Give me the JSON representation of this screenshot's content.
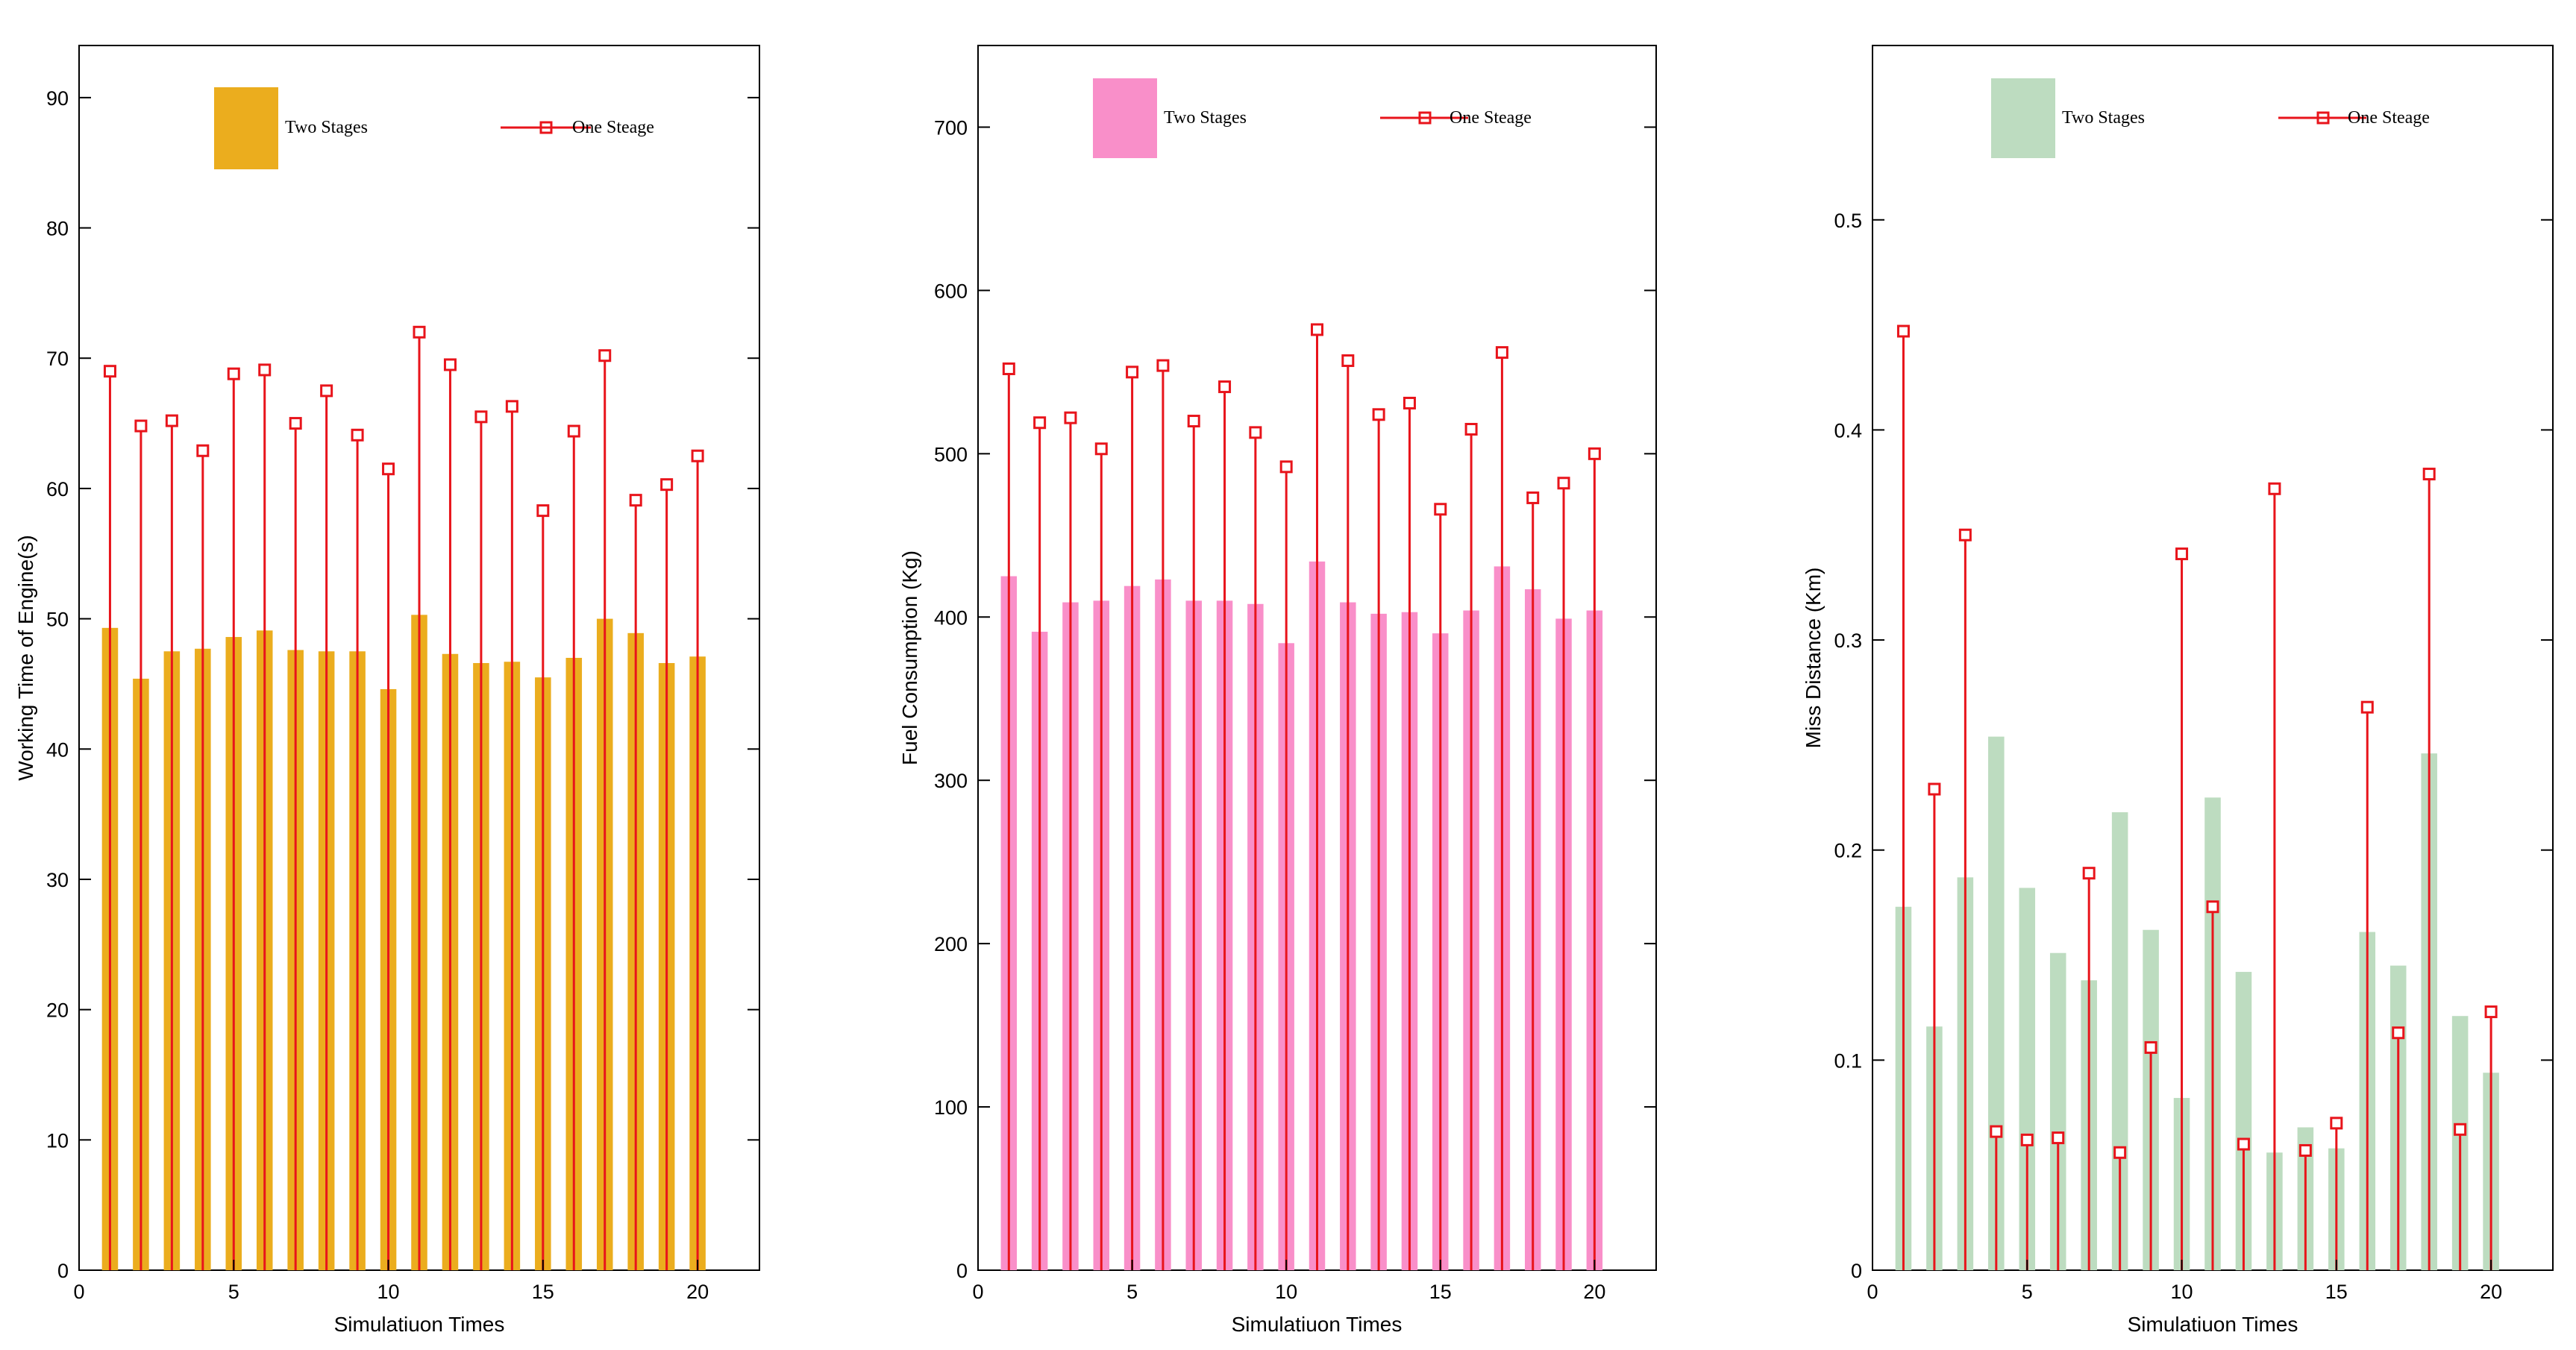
{
  "chart_data": [
    {
      "type": "bar",
      "xlabel": "Simulatiuon Times",
      "ylabel": "Working Time of Engine(s)",
      "xlim": [
        0,
        22
      ],
      "ylim": [
        0,
        94
      ],
      "xticks": [
        0,
        5,
        10,
        15,
        20
      ],
      "yticks": [
        0,
        10,
        20,
        30,
        40,
        50,
        60,
        70,
        80,
        90
      ],
      "x": [
        1,
        2,
        3,
        4,
        5,
        6,
        7,
        8,
        9,
        10,
        11,
        12,
        13,
        14,
        15,
        16,
        17,
        18,
        19,
        20
      ],
      "legend_position": "top",
      "series": [
        {
          "name": "Two  Stages",
          "kind": "bar",
          "color": "#EBAD1E",
          "values": [
            49.3,
            45.4,
            47.5,
            47.7,
            48.6,
            49.1,
            47.6,
            47.5,
            47.5,
            44.6,
            50.3,
            47.3,
            46.6,
            46.7,
            45.5,
            47.0,
            50.0,
            48.9,
            46.6,
            47.1
          ]
        },
        {
          "name": "One Steage",
          "kind": "stem",
          "color": "#E8141B",
          "values": [
            69.0,
            64.8,
            65.2,
            62.9,
            68.8,
            69.1,
            65.0,
            67.5,
            64.1,
            61.5,
            72.0,
            69.5,
            65.5,
            66.3,
            58.3,
            64.4,
            70.2,
            59.1,
            60.3,
            62.5
          ]
        }
      ]
    },
    {
      "type": "bar",
      "xlabel": "Simulatiuon Times",
      "ylabel": "Fuel Consumption (Kg)",
      "xlim": [
        0,
        22
      ],
      "ylim": [
        0,
        750
      ],
      "xticks": [
        0,
        5,
        10,
        15,
        20
      ],
      "yticks": [
        0,
        100,
        200,
        300,
        400,
        500,
        600,
        700
      ],
      "x": [
        1,
        2,
        3,
        4,
        5,
        6,
        7,
        8,
        9,
        10,
        11,
        12,
        13,
        14,
        15,
        16,
        17,
        18,
        19,
        20
      ],
      "legend_position": "top",
      "series": [
        {
          "name": "Two  Stages",
          "kind": "bar",
          "color": "#F98FC9",
          "values": [
            425,
            391,
            409,
            410,
            419,
            423,
            410,
            410,
            408,
            384,
            434,
            409,
            402,
            403,
            390,
            404,
            431,
            417,
            399,
            404
          ]
        },
        {
          "name": "One Steage",
          "kind": "stem",
          "color": "#E8141B",
          "values": [
            552,
            519,
            522,
            503,
            550,
            554,
            520,
            541,
            513,
            492,
            576,
            557,
            524,
            531,
            466,
            515,
            562,
            473,
            482,
            500
          ]
        }
      ]
    },
    {
      "type": "bar",
      "xlabel": "Simulatiuon Times",
      "ylabel": "Miss Distance (Km)",
      "xlim": [
        0,
        22
      ],
      "ylim": [
        0,
        0.583
      ],
      "xticks": [
        0,
        5,
        10,
        15,
        20
      ],
      "yticks": [
        0,
        0.1,
        0.2,
        0.3,
        0.4,
        0.5
      ],
      "x": [
        1,
        2,
        3,
        4,
        5,
        6,
        7,
        8,
        9,
        10,
        11,
        12,
        13,
        14,
        15,
        16,
        17,
        18,
        19,
        20
      ],
      "legend_position": "top",
      "series": [
        {
          "name": "Two  Stages",
          "kind": "bar",
          "color": "#BDDCC0",
          "values": [
            0.173,
            0.116,
            0.187,
            0.254,
            0.182,
            0.151,
            0.138,
            0.218,
            0.162,
            0.082,
            0.225,
            0.142,
            0.056,
            0.068,
            0.058,
            0.161,
            0.145,
            0.246,
            0.121,
            0.094
          ]
        },
        {
          "name": "One Steage",
          "kind": "stem",
          "color": "#E8141B",
          "values": [
            0.447,
            0.229,
            0.35,
            0.066,
            0.062,
            0.063,
            0.189,
            0.056,
            0.106,
            0.341,
            0.173,
            0.06,
            0.372,
            0.057,
            0.07,
            0.268,
            0.113,
            0.379,
            0.067,
            0.123
          ]
        }
      ]
    }
  ]
}
